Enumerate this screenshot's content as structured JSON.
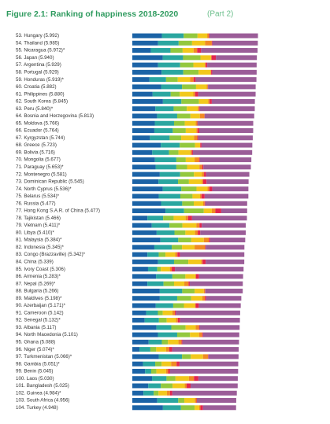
{
  "chart_data": {
    "type": "stacked_barh",
    "title": "Figure 2.1: Ranking of happiness 2018-2020",
    "subtitle": "(Part 2)",
    "xlim": [
      0,
      8
    ],
    "categories": [
      "53. Hungary (5.992)",
      "54. Thailand (5.985)",
      "55. Nicaragua (5.972)*",
      "56. Japan (5.940)",
      "57. Argentina (5.929)",
      "58. Portugal (5.929)",
      "59. Honduras (5.919)*",
      "60. Croatia (5.882)",
      "61. Philippines (5.880)",
      "62. South Korea (5.845)",
      "63. Peru (5.840)*",
      "64. Bosnia and Herzegovina (5.813)",
      "65. Moldova (5.766)",
      "66. Ecuador (5.764)",
      "67. Kyrgyzstan (5.744)",
      "68. Greece (5.723)",
      "69. Bolivia (5.716)",
      "70. Mongolia (5.677)",
      "71. Paraguay (5.653)*",
      "72. Montenegro (5.581)",
      "73. Dominican Republic (5.545)",
      "74. North Cyprus (5.536)*",
      "75. Belarus (5.534)*",
      "76. Russia (5.477)",
      "77. Hong Kong S.A.R. of China (5.477)",
      "78. Tajikistan (5.466)",
      "79. Vietnam (5.411)*",
      "80. Libya (5.410)*",
      "81. Malaysia (5.384)*",
      "82. Indonesia (5.345)*",
      "83. Congo (Brazzaville) (5.342)*",
      "84. China (5.339)",
      "85. Ivory Coast (5.306)",
      "86. Armenia (5.283)*",
      "87. Nepal (5.269)*",
      "88. Bulgaria (5.266)",
      "89. Maldives (5.198)*",
      "90. Azerbaijan (5.171)*",
      "91. Cameroon (5.142)",
      "92. Senegal (5.132)*",
      "93. Albania (5.117)",
      "94. North Macedonia (5.101)",
      "95. Ghana (5.088)",
      "96. Niger (5.074)*",
      "97. Turkmenistan (5.066)*",
      "98. Gambia (5.051)*",
      "99. Benin (5.045)",
      "100. Laos (5.030)",
      "101. Bangladesh (5.025)",
      "102. Guinea (4.984)*",
      "103. South Africa (4.956)",
      "104. Turkey (4.948)"
    ],
    "series": [
      {
        "color": "#1b63a6",
        "values": [
          1.41,
          1.23,
          0.88,
          1.45,
          1.23,
          1.4,
          0.82,
          1.37,
          0.97,
          1.46,
          1.1,
          1.18,
          1.07,
          1.05,
          0.84,
          1.36,
          0.95,
          1.08,
          1.11,
          1.31,
          1.25,
          1.45,
          1.26,
          1.37,
          1.58,
          0.72,
          0.93,
          1.16,
          1.34,
          1.05,
          0.72,
          1.23,
          0.75,
          1.13,
          0.72,
          1.31,
          1.31,
          1.12,
          0.66,
          0.59,
          1.15,
          1.22,
          0.78,
          0.34,
          1.26,
          0.51,
          0.61,
          0.94,
          0.76,
          0.53,
          1.19,
          1.46
        ]
      },
      {
        "color": "#2aa6a0",
        "values": [
          1.04,
          0.98,
          0.94,
          0.97,
          1.05,
          1.03,
          0.79,
          1.0,
          0.86,
          0.88,
          0.87,
          0.96,
          0.92,
          0.88,
          0.94,
          0.9,
          0.8,
          1.02,
          0.99,
          0.97,
          0.93,
          0.89,
          1.03,
          1.01,
          0.89,
          0.75,
          0.84,
          0.85,
          0.85,
          0.83,
          0.54,
          0.76,
          0.44,
          0.78,
          0.77,
          1.07,
          0.83,
          0.83,
          0.56,
          0.68,
          0.71,
          0.92,
          0.63,
          0.52,
          1.11,
          0.58,
          0.29,
          0.69,
          0.6,
          0.49,
          1.0,
          0.86
        ]
      },
      {
        "color": "#93c83e",
        "values": [
          0.66,
          0.64,
          0.58,
          0.83,
          0.63,
          0.73,
          0.56,
          0.67,
          0.43,
          0.84,
          0.63,
          0.63,
          0.51,
          0.62,
          0.55,
          0.73,
          0.45,
          0.45,
          0.51,
          0.66,
          0.52,
          0.72,
          0.58,
          0.55,
          0.94,
          0.5,
          0.62,
          0.52,
          0.62,
          0.49,
          0.32,
          0.68,
          0.17,
          0.62,
          0.5,
          0.59,
          0.67,
          0.51,
          0.23,
          0.37,
          0.68,
          0.61,
          0.29,
          0.28,
          0.42,
          0.31,
          0.25,
          0.43,
          0.56,
          0.23,
          0.29,
          0.65
        ]
      },
      {
        "color": "#f2c81c",
        "values": [
          0.46,
          0.62,
          0.52,
          0.5,
          0.55,
          0.57,
          0.58,
          0.51,
          0.65,
          0.44,
          0.53,
          0.45,
          0.52,
          0.5,
          0.61,
          0.25,
          0.57,
          0.42,
          0.59,
          0.38,
          0.61,
          0.52,
          0.36,
          0.45,
          0.38,
          0.57,
          0.66,
          0.46,
          0.6,
          0.6,
          0.46,
          0.61,
          0.43,
          0.47,
          0.49,
          0.44,
          0.53,
          0.53,
          0.46,
          0.44,
          0.48,
          0.43,
          0.5,
          0.47,
          0.58,
          0.45,
          0.46,
          0.64,
          0.58,
          0.4,
          0.5,
          0.22
        ]
      },
      {
        "color": "#f08a24",
        "values": [
          0.08,
          0.32,
          0.17,
          0.03,
          0.04,
          0.03,
          0.17,
          0.05,
          0.09,
          0.07,
          0.05,
          0.22,
          0.08,
          0.06,
          0.16,
          0.0,
          0.07,
          0.21,
          0.13,
          0.1,
          0.07,
          0.09,
          0.07,
          0.07,
          0.17,
          0.12,
          0.15,
          0.13,
          0.24,
          0.5,
          0.11,
          0.07,
          0.09,
          0.04,
          0.2,
          0.06,
          0.12,
          0.03,
          0.12,
          0.09,
          0.16,
          0.15,
          0.15,
          0.15,
          0.24,
          0.26,
          0.1,
          0.24,
          0.09,
          0.15,
          0.08,
          0.06
        ]
      },
      {
        "color": "#e2264f",
        "values": [
          0.03,
          0.03,
          0.19,
          0.21,
          0.07,
          0.05,
          0.1,
          0.01,
          0.14,
          0.1,
          0.04,
          0.01,
          0.02,
          0.08,
          0.04,
          0.06,
          0.05,
          0.04,
          0.06,
          0.1,
          0.16,
          0.14,
          0.15,
          0.03,
          0.28,
          0.19,
          0.11,
          0.12,
          0.06,
          0.03,
          0.12,
          0.15,
          0.15,
          0.14,
          0.06,
          0.01,
          0.06,
          0.15,
          0.05,
          0.11,
          0.03,
          0.04,
          0.04,
          0.14,
          0.02,
          0.14,
          0.09,
          0.21,
          0.19,
          0.11,
          0.02,
          0.12
        ]
      },
      {
        "color": "#9b5d98",
        "values": [
          2.312,
          2.165,
          2.692,
          1.95,
          2.359,
          2.119,
          2.899,
          2.272,
          2.74,
          2.055,
          2.62,
          2.363,
          2.646,
          2.574,
          2.604,
          2.423,
          2.826,
          2.457,
          2.263,
          2.061,
          2.005,
          1.726,
          2.084,
          1.997,
          1.237,
          2.616,
          2.101,
          2.17,
          1.674,
          1.845,
          3.072,
          1.839,
          3.276,
          2.103,
          2.529,
          1.786,
          1.678,
          2.001,
          3.062,
          2.852,
          1.907,
          1.731,
          2.698,
          3.174,
          1.436,
          2.801,
          3.245,
          1.88,
          2.245,
          3.074,
          1.876,
          1.578
        ]
      }
    ]
  }
}
